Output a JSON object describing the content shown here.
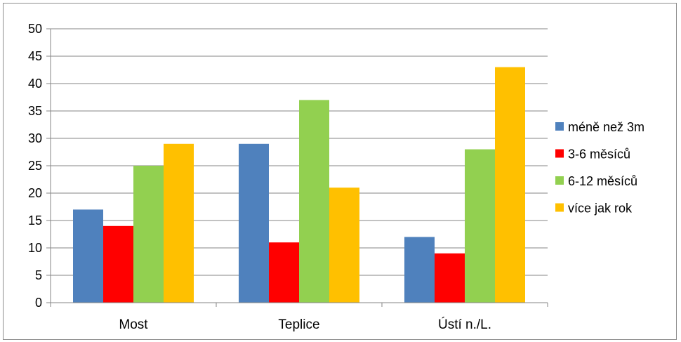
{
  "chart_data": {
    "type": "bar",
    "categories": [
      "Most",
      "Teplice",
      "Ústí n./L."
    ],
    "series": [
      {
        "name": "méně než 3m",
        "values": [
          17,
          29,
          12
        ],
        "color": "#4f81bd"
      },
      {
        "name": "3-6 měsíců",
        "values": [
          14,
          11,
          9
        ],
        "color": "#ff0000"
      },
      {
        "name": "6-12 měsíců",
        "values": [
          25,
          37,
          28
        ],
        "color": "#92d050"
      },
      {
        "name": "více jak rok",
        "values": [
          29,
          21,
          43
        ],
        "color": "#ffc000"
      }
    ],
    "title": "",
    "xlabel": "",
    "ylabel": "",
    "ylim": [
      0,
      50
    ],
    "yticks": [
      "0",
      "5",
      "10",
      "15",
      "20",
      "25",
      "30",
      "35",
      "40",
      "45",
      "50"
    ],
    "grid": true,
    "legend_position": "right"
  }
}
